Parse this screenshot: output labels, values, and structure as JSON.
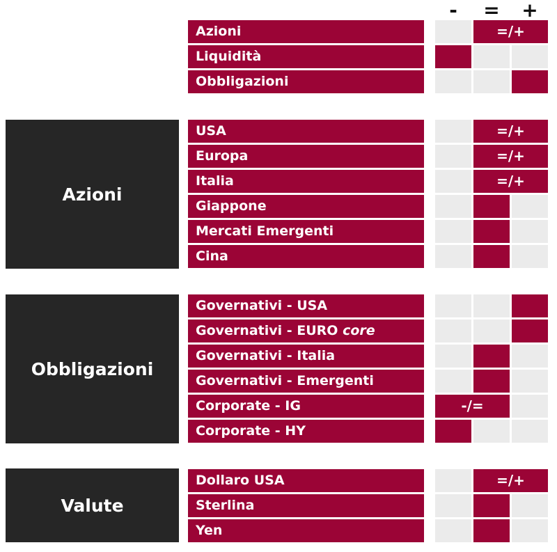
{
  "header": {
    "minus": "-",
    "equal": "=",
    "plus": "+"
  },
  "colors": {
    "accent": "#9b0436",
    "empty": "#ebebeb",
    "group_bg": "#262626"
  },
  "groups": [
    "Azioni",
    "Obbligazioni",
    "Valute"
  ],
  "rows": [
    {
      "label": "Azioni",
      "view": "=/+",
      "mark": "=/+"
    },
    {
      "label": "Liquidità",
      "view": "-",
      "mark": ""
    },
    {
      "label": "Obbligazioni",
      "view": "+",
      "mark": ""
    },
    {
      "label": "USA",
      "view": "=/+",
      "mark": "=/+"
    },
    {
      "label": "Europa",
      "view": "=/+",
      "mark": "=/+"
    },
    {
      "label": "Italia",
      "view": "=/+",
      "mark": "=/+"
    },
    {
      "label": "Giappone",
      "view": "=",
      "mark": ""
    },
    {
      "label": "Mercati Emergenti",
      "view": "=",
      "mark": ""
    },
    {
      "label": "Cina",
      "view": "=",
      "mark": ""
    },
    {
      "label": "Governativi - USA",
      "view": "+",
      "mark": ""
    },
    {
      "label_prefix": "Governativi - EURO ",
      "label_italic": "core",
      "view": "+",
      "mark": ""
    },
    {
      "label": "Governativi - Italia",
      "view": "=",
      "mark": ""
    },
    {
      "label": "Governativi - Emergenti",
      "view": "=",
      "mark": ""
    },
    {
      "label": "Corporate - IG",
      "view": "-/=",
      "mark": "-/="
    },
    {
      "label": "Corporate - HY",
      "view": "-",
      "mark": ""
    },
    {
      "label": "Dollaro USA",
      "view": "=/+",
      "mark": "=/+"
    },
    {
      "label": "Sterlina",
      "view": "=",
      "mark": ""
    },
    {
      "label": "Yen",
      "view": "=",
      "mark": ""
    }
  ]
}
